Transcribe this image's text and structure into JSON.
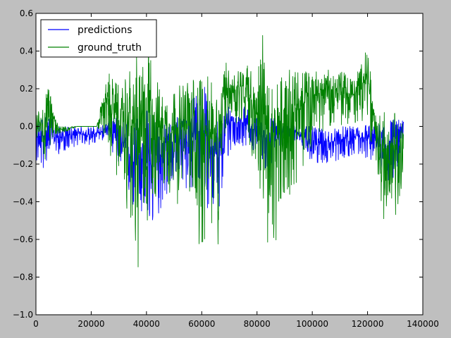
{
  "chart_data": {
    "type": "line",
    "title": "",
    "xlabel": "",
    "ylabel": "",
    "xlim": [
      0,
      140000
    ],
    "ylim": [
      -1.0,
      0.6
    ],
    "xticks": [
      0,
      20000,
      40000,
      60000,
      80000,
      100000,
      120000,
      140000
    ],
    "xtick_labels": [
      "0",
      "20000",
      "40000",
      "60000",
      "80000",
      "100000",
      "120000",
      "140000"
    ],
    "yticks": [
      -1.0,
      -0.8,
      -0.6,
      -0.4,
      -0.2,
      0.0,
      0.2,
      0.4,
      0.6
    ],
    "ytick_labels": [
      "−1.0",
      "−0.8",
      "−0.6",
      "−0.4",
      "−0.2",
      "0.0",
      "0.2",
      "0.4",
      "0.6"
    ],
    "grid": false,
    "legend": {
      "position": "top-left",
      "entries": [
        "predictions",
        "ground_truth"
      ]
    },
    "x_extent": [
      0,
      133000
    ],
    "series": [
      {
        "name": "predictions",
        "color": "#0000ff",
        "profile_x": [
          0,
          3000,
          5000,
          8000,
          15000,
          22000,
          26000,
          28000,
          31000,
          35000,
          38000,
          41000,
          45000,
          50000,
          55000,
          60000,
          63000,
          66000,
          70000,
          76000,
          80000,
          84000,
          88000,
          95000,
          100000,
          105000,
          110000,
          115000,
          120000,
          123000,
          126000,
          129000,
          133000
        ],
        "profile_min": [
          -0.2,
          -0.24,
          -0.12,
          -0.15,
          -0.1,
          -0.1,
          -0.05,
          -0.15,
          -0.3,
          -0.45,
          -0.5,
          -0.62,
          -0.45,
          -0.3,
          -0.35,
          -0.4,
          -0.45,
          -0.5,
          -0.15,
          -0.1,
          -0.15,
          -0.25,
          -0.12,
          -0.1,
          -0.2,
          -0.2,
          -0.18,
          -0.15,
          -0.2,
          -0.15,
          -0.35,
          -0.3,
          -0.1
        ],
        "profile_max": [
          0.02,
          0.08,
          0.05,
          0.0,
          0.0,
          0.0,
          0.02,
          0.05,
          0.05,
          0.05,
          0.1,
          0.1,
          0.05,
          0.05,
          0.1,
          0.25,
          0.15,
          0.05,
          0.15,
          0.1,
          0.05,
          0.05,
          0.05,
          0.0,
          0.0,
          -0.02,
          0.0,
          0.0,
          0.02,
          0.0,
          0.05,
          0.05,
          0.03
        ]
      },
      {
        "name": "ground_truth",
        "color": "#008000",
        "profile_x": [
          0,
          3000,
          5000,
          8000,
          15000,
          22000,
          26000,
          28000,
          31000,
          35000,
          37000,
          41000,
          45000,
          50000,
          55000,
          60000,
          63000,
          66000,
          68000,
          72000,
          76000,
          80000,
          82000,
          84000,
          86000,
          90000,
          95000,
          100000,
          105000,
          110000,
          115000,
          120000,
          123000,
          125000,
          128000,
          131000,
          133000
        ],
        "profile_min": [
          -0.05,
          -0.25,
          -0.1,
          -0.05,
          0.0,
          0.0,
          -0.1,
          -0.25,
          -0.3,
          -0.6,
          -0.82,
          -0.45,
          -0.35,
          -0.4,
          -0.45,
          -0.7,
          -0.5,
          -0.73,
          -0.05,
          0.0,
          0.0,
          -0.3,
          -0.5,
          -0.68,
          -0.83,
          -0.4,
          -0.3,
          -0.1,
          0.0,
          0.0,
          0.0,
          0.0,
          -0.2,
          -0.6,
          -0.35,
          -0.55,
          -0.2
        ],
        "profile_max": [
          0.08,
          0.15,
          0.22,
          0.0,
          0.0,
          0.0,
          0.3,
          0.25,
          0.2,
          0.35,
          0.38,
          0.4,
          0.2,
          0.2,
          0.25,
          0.3,
          0.25,
          0.15,
          0.35,
          0.3,
          0.35,
          0.25,
          0.53,
          0.2,
          0.25,
          0.3,
          0.3,
          0.3,
          0.3,
          0.3,
          0.25,
          0.42,
          0.05,
          0.1,
          0.05,
          0.1,
          0.05
        ]
      }
    ]
  }
}
